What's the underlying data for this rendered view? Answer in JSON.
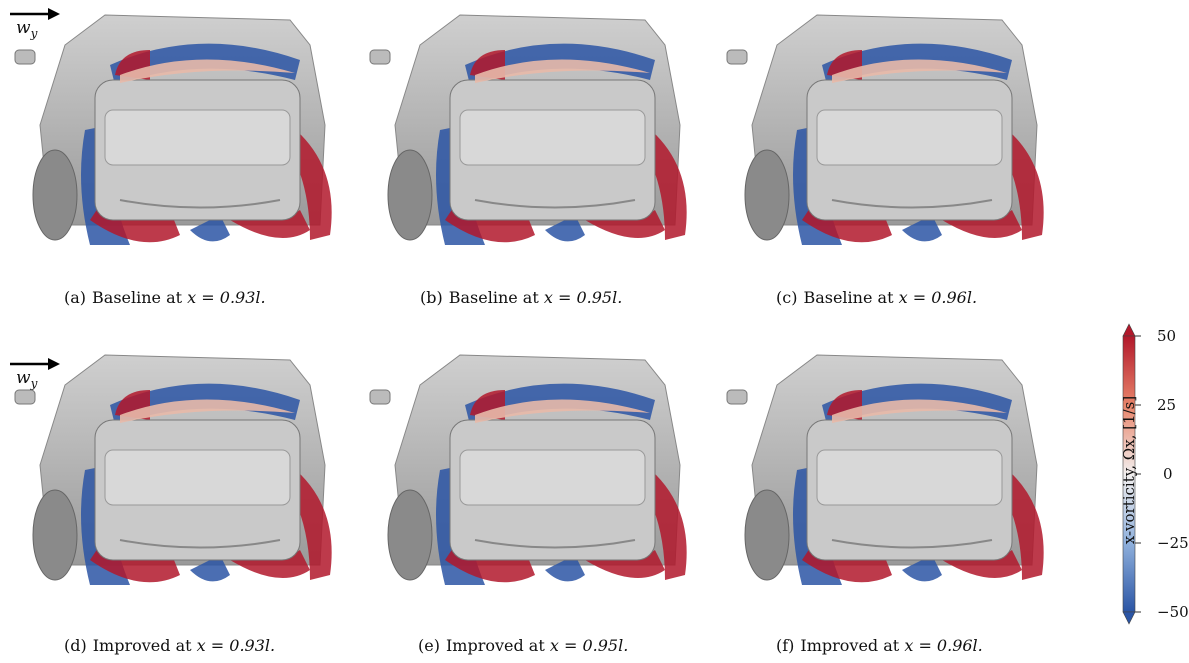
{
  "panels": [
    {
      "label": "(a)",
      "text": "Baseline at",
      "math": "x = 0.93l."
    },
    {
      "label": "(b)",
      "text": "Baseline at",
      "math": "x = 0.95l."
    },
    {
      "label": "(c)",
      "text": "Baseline at",
      "math": "x = 0.96l."
    },
    {
      "label": "(d)",
      "text": "Improved at",
      "math": "x = 0.93l."
    },
    {
      "label": "(e)",
      "text": "Improved at",
      "math": "x = 0.95l."
    },
    {
      "label": "(f)",
      "text": "Improved at",
      "math": "x = 0.96l."
    }
  ],
  "wind_label": "w",
  "wind_sub": "y",
  "colorbar": {
    "title": "x-vorticity, Ωx, [1/s]",
    "ticks": [
      "50",
      "25",
      "0",
      "−25",
      "−50"
    ],
    "colors": {
      "high": "#b2182b",
      "mid": "#f7f7f7",
      "low": "#2b55a5"
    }
  }
}
